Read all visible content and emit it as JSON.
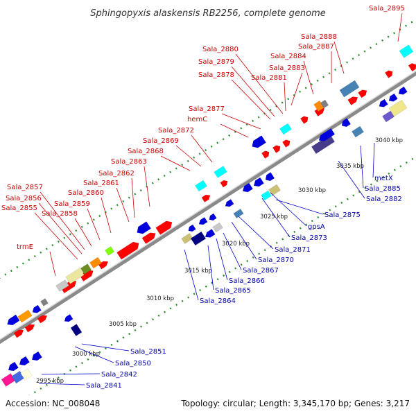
{
  "title": "Sphingopyxis alaskensis RB2256, complete genome",
  "footer": {
    "accession": "Accession: NC_008048",
    "topology": "Topology: circular; Length: 3,345,170 bp; Genes: 3,217"
  },
  "colors": {
    "backbone": "#8a8a8a",
    "dots": "#2e8b2e",
    "label_top": "#cc0000",
    "label_bottom": "#0000aa",
    "leader_top": "#cc0000",
    "leader_bottom": "#0000cc"
  },
  "ticks": [
    {
      "label": "2995 kbp"
    },
    {
      "label": "3000 kbp"
    },
    {
      "label": "3005 kbp"
    },
    {
      "label": "3010 kbp"
    },
    {
      "label": "3015 kbp"
    },
    {
      "label": "3020 kbp"
    },
    {
      "label": "3025 kbp"
    },
    {
      "label": "3030 kbp"
    },
    {
      "label": "3035 kbp"
    },
    {
      "label": "3040 kbp"
    }
  ],
  "top_labels": [
    {
      "text": "trmE"
    },
    {
      "text": "Sala_2855"
    },
    {
      "text": "Sala_2856"
    },
    {
      "text": "Sala_2857"
    },
    {
      "text": "Sala_2858"
    },
    {
      "text": "Sala_2859"
    },
    {
      "text": "Sala_2860"
    },
    {
      "text": "Sala_2861"
    },
    {
      "text": "Sala_2862"
    },
    {
      "text": "Sala_2863"
    },
    {
      "text": "Sala_2868"
    },
    {
      "text": "Sala_2869"
    },
    {
      "text": "Sala_2872"
    },
    {
      "text": "hemC"
    },
    {
      "text": "Sala_2877"
    },
    {
      "text": "Sala_2878"
    },
    {
      "text": "Sala_2879"
    },
    {
      "text": "Sala_2880"
    },
    {
      "text": "Sala_2881"
    },
    {
      "text": "Sala_2883"
    },
    {
      "text": "Sala_2884"
    },
    {
      "text": "Sala_2887"
    },
    {
      "text": "Sala_2888"
    },
    {
      "text": "Sala_2895"
    }
  ],
  "bottom_labels": [
    {
      "text": "Sala_2841"
    },
    {
      "text": "Sala_2842"
    },
    {
      "text": "Sala_2850"
    },
    {
      "text": "Sala_2851"
    },
    {
      "text": "Sala_2864"
    },
    {
      "text": "Sala_2865"
    },
    {
      "text": "Sala_2866"
    },
    {
      "text": "Sala_2867"
    },
    {
      "text": "Sala_2870"
    },
    {
      "text": "Sala_2871"
    },
    {
      "text": "Sala_2873"
    },
    {
      "text": "gpsA"
    },
    {
      "text": "Sala_2875"
    },
    {
      "text": "Sala_2882"
    },
    {
      "text": "Sala_2885"
    },
    {
      "text": "metX"
    }
  ]
}
